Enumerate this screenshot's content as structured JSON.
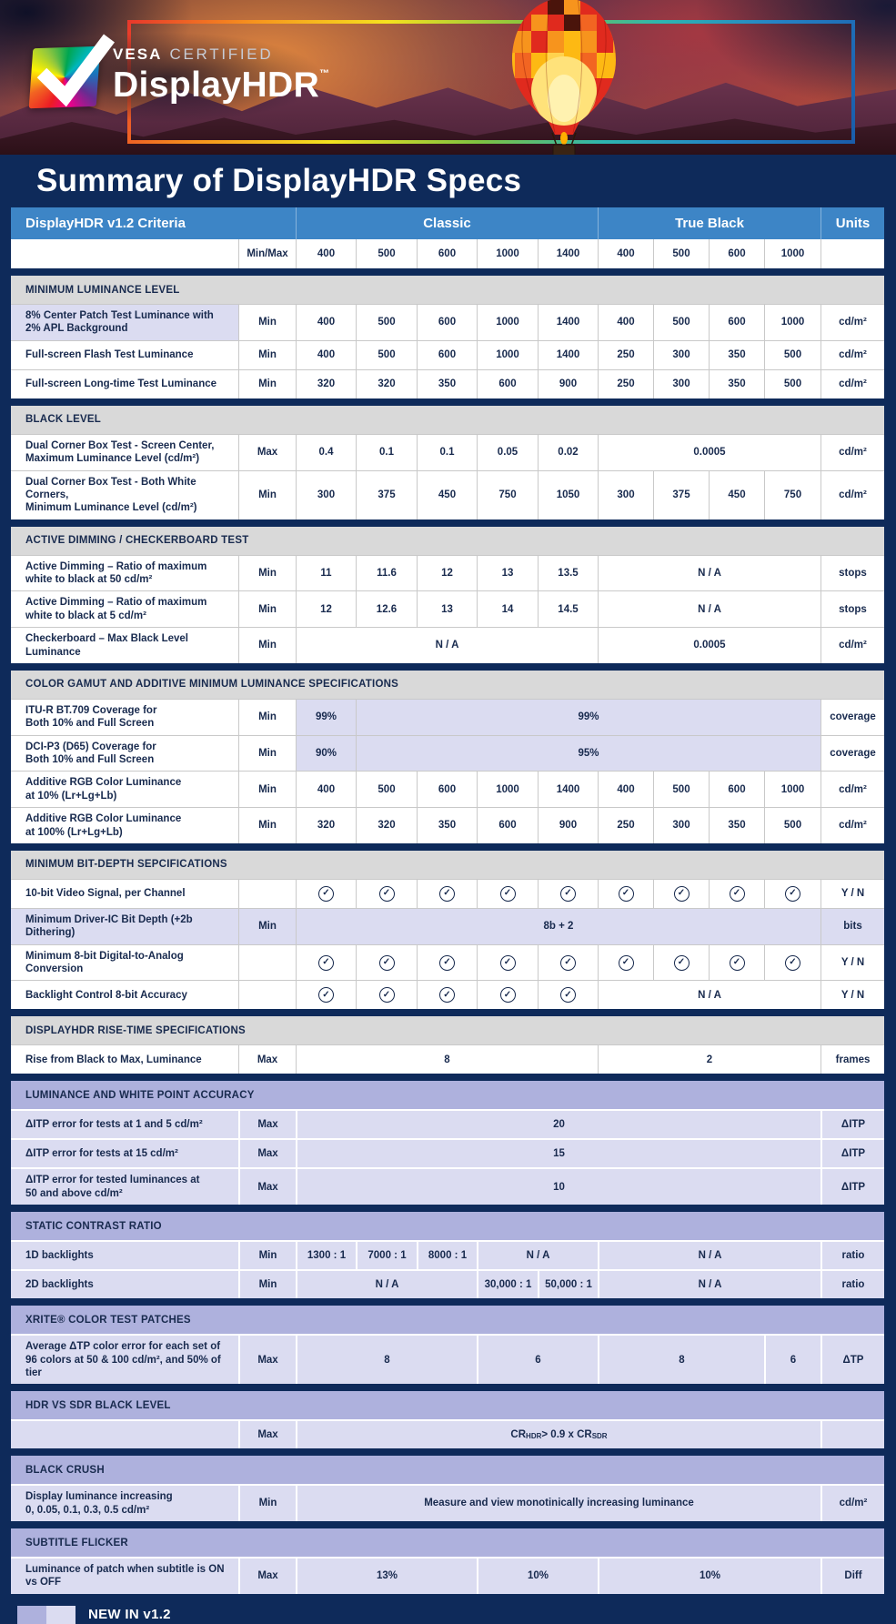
{
  "colors": {
    "page_background": "#0e2a5a",
    "table_header_blue": "#3d85c6",
    "section_gray": "#d9d9d9",
    "highlight_lavender": "#dbdcf1",
    "section_lavender": "#aeb1dd",
    "text_navy": "#182a4e"
  },
  "banner": {
    "logo": {
      "vesa": "VESA",
      "certified": "CERTIFIED",
      "product": "DisplayHDR",
      "trademark": "TM"
    }
  },
  "title": "Summary of DisplayHDR Specs",
  "table": {
    "header": {
      "criteria": "DisplayHDR v1.2 Criteria",
      "classic": "Classic",
      "true_black": "True Black",
      "units": "Units"
    },
    "tier_row": {
      "minmax_label": "Min/Max",
      "tiers": [
        "400",
        "500",
        "600",
        "1000",
        "1400",
        "400",
        "500",
        "600",
        "1000"
      ]
    },
    "sections": [
      {
        "id": "minimum-luminance-level",
        "title": "MINIMUM LUMINANCE LEVEL",
        "theme": "light",
        "rows": [
          {
            "label": "8% Center Patch Test Luminance with\n2% APL Background",
            "minmax": "Min",
            "hl": "label",
            "cells": [
              {
                "t": "400"
              },
              {
                "t": "500"
              },
              {
                "t": "600"
              },
              {
                "t": "1000"
              },
              {
                "t": "1400"
              },
              {
                "t": "400"
              },
              {
                "t": "500"
              },
              {
                "t": "600"
              },
              {
                "t": "1000"
              }
            ],
            "units": "cd/m²"
          },
          {
            "label": "Full-screen Flash Test Luminance",
            "minmax": "Min",
            "cells": [
              {
                "t": "400"
              },
              {
                "t": "500"
              },
              {
                "t": "600"
              },
              {
                "t": "1000"
              },
              {
                "t": "1400"
              },
              {
                "t": "250"
              },
              {
                "t": "300"
              },
              {
                "t": "350"
              },
              {
                "t": "500"
              }
            ],
            "units": "cd/m²"
          },
          {
            "label": "Full-screen Long-time Test Luminance",
            "minmax": "Min",
            "cells": [
              {
                "t": "320"
              },
              {
                "t": "320"
              },
              {
                "t": "350"
              },
              {
                "t": "600"
              },
              {
                "t": "900"
              },
              {
                "t": "250"
              },
              {
                "t": "300"
              },
              {
                "t": "350"
              },
              {
                "t": "500"
              }
            ],
            "units": "cd/m²"
          }
        ]
      },
      {
        "id": "black-level",
        "title": "BLACK LEVEL",
        "theme": "light",
        "rows": [
          {
            "label": "Dual Corner Box Test - Screen Center,\nMaximum Luminance Level (cd/m²)",
            "minmax": "Max",
            "cells": [
              {
                "t": "0.4"
              },
              {
                "t": "0.1"
              },
              {
                "t": "0.1"
              },
              {
                "t": "0.05"
              },
              {
                "t": "0.02"
              },
              {
                "t": "0.0005",
                "s": 4
              }
            ],
            "units": "cd/m²"
          },
          {
            "label": "Dual Corner Box Test - Both White Corners,\nMinimum Luminance Level (cd/m²)",
            "minmax": "Min",
            "cells": [
              {
                "t": "300"
              },
              {
                "t": "375"
              },
              {
                "t": "450"
              },
              {
                "t": "750"
              },
              {
                "t": "1050"
              },
              {
                "t": "300"
              },
              {
                "t": "375"
              },
              {
                "t": "450"
              },
              {
                "t": "750"
              }
            ],
            "units": "cd/m²"
          }
        ]
      },
      {
        "id": "active-dimming-checkerboard-test",
        "title": "ACTIVE DIMMING / CHECKERBOARD TEST",
        "theme": "light",
        "rows": [
          {
            "label": "Active Dimming – Ratio of maximum\nwhite to black at 50 cd/m²",
            "minmax": "Min",
            "cells": [
              {
                "t": "11"
              },
              {
                "t": "11.6"
              },
              {
                "t": "12"
              },
              {
                "t": "13"
              },
              {
                "t": "13.5"
              },
              {
                "t": "N / A",
                "s": 4
              }
            ],
            "units": "stops"
          },
          {
            "label": "Active Dimming – Ratio of maximum\nwhite to black at 5 cd/m²",
            "minmax": "Min",
            "cells": [
              {
                "t": "12"
              },
              {
                "t": "12.6"
              },
              {
                "t": "13"
              },
              {
                "t": "14"
              },
              {
                "t": "14.5"
              },
              {
                "t": "N / A",
                "s": 4
              }
            ],
            "units": "stops"
          },
          {
            "label": "Checkerboard – Max Black Level Luminance",
            "minmax": "Min",
            "cells": [
              {
                "t": "N / A",
                "s": 5
              },
              {
                "t": "0.0005",
                "s": 4
              }
            ],
            "units": "cd/m²"
          }
        ]
      },
      {
        "id": "color-gamut",
        "title": "COLOR GAMUT AND ADDITIVE MINIMUM LUMINANCE SPECIFICATIONS",
        "theme": "light",
        "rows": [
          {
            "label": "ITU-R BT.709 Coverage for\nBoth 10% and Full Screen",
            "minmax": "Min",
            "cells": [
              {
                "t": "99%",
                "hl": true
              },
              {
                "t": "99%",
                "s": 8,
                "hl": true
              }
            ],
            "units": "coverage"
          },
          {
            "label": "DCI-P3 (D65) Coverage for\nBoth 10% and Full Screen",
            "minmax": "Min",
            "cells": [
              {
                "t": "90%",
                "hl": true
              },
              {
                "t": "95%",
                "s": 8,
                "hl": true
              }
            ],
            "units": "coverage"
          },
          {
            "label": "Additive RGB Color Luminance\nat 10% (Lr+Lg+Lb)",
            "minmax": "Min",
            "cells": [
              {
                "t": "400"
              },
              {
                "t": "500"
              },
              {
                "t": "600"
              },
              {
                "t": "1000"
              },
              {
                "t": "1400"
              },
              {
                "t": "400"
              },
              {
                "t": "500"
              },
              {
                "t": "600"
              },
              {
                "t": "1000"
              }
            ],
            "units": "cd/m²"
          },
          {
            "label": "Additive RGB Color Luminance\nat 100% (Lr+Lg+Lb)",
            "minmax": "Min",
            "cells": [
              {
                "t": "320"
              },
              {
                "t": "320"
              },
              {
                "t": "350"
              },
              {
                "t": "600"
              },
              {
                "t": "900"
              },
              {
                "t": "250"
              },
              {
                "t": "300"
              },
              {
                "t": "350"
              },
              {
                "t": "500"
              }
            ],
            "units": "cd/m²"
          }
        ]
      },
      {
        "id": "minimum-bit-depth",
        "title": "MINIMUM BIT-DEPTH SEPCIFICATIONS",
        "theme": "light",
        "rows": [
          {
            "label": "10-bit Video Signal, per Channel",
            "minmax": "",
            "cells": [
              {
                "check": true
              },
              {
                "check": true
              },
              {
                "check": true
              },
              {
                "check": true
              },
              {
                "check": true
              },
              {
                "check": true
              },
              {
                "check": true
              },
              {
                "check": true
              },
              {
                "check": true
              }
            ],
            "units": "Y / N"
          },
          {
            "label": "Minimum Driver-IC Bit Depth (+2b Dithering)",
            "minmax": "Min",
            "hl": "row",
            "cells": [
              {
                "t": "8b + 2",
                "s": 9
              }
            ],
            "units": "bits"
          },
          {
            "label": "Minimum 8-bit Digital-to-Analog Conversion",
            "minmax": "",
            "cells": [
              {
                "check": true
              },
              {
                "check": true
              },
              {
                "check": true
              },
              {
                "check": true
              },
              {
                "check": true
              },
              {
                "check": true
              },
              {
                "check": true
              },
              {
                "check": true
              },
              {
                "check": true
              }
            ],
            "units": "Y / N"
          },
          {
            "label": "Backlight Control 8-bit Accuracy",
            "minmax": "",
            "cells": [
              {
                "check": true
              },
              {
                "check": true
              },
              {
                "check": true
              },
              {
                "check": true
              },
              {
                "check": true
              },
              {
                "t": "N / A",
                "s": 4
              }
            ],
            "units": "Y / N"
          }
        ]
      },
      {
        "id": "rise-time",
        "title": "DISPLAYHDR RISE-TIME SPECIFICATIONS",
        "theme": "light",
        "rows": [
          {
            "label": "Rise from Black to Max, Luminance",
            "minmax": "Max",
            "cells": [
              {
                "t": "8",
                "s": 5
              },
              {
                "t": "2",
                "s": 4
              }
            ],
            "units": "frames"
          }
        ]
      },
      {
        "id": "luminance-white-point-accuracy",
        "title": "LUMINANCE AND WHITE POINT ACCURACY",
        "theme": "purple",
        "rows": [
          {
            "label": "ΔITP error for tests at 1 and 5 cd/m²",
            "minmax": "Max",
            "cells": [
              {
                "t": "20",
                "s": 9
              }
            ],
            "units": "ΔITP"
          },
          {
            "label": "ΔITP error for tests at 15 cd/m²",
            "minmax": "Max",
            "cells": [
              {
                "t": "15",
                "s": 9
              }
            ],
            "units": "ΔITP"
          },
          {
            "label": "ΔITP error for tested luminances at\n50 and above cd/m²",
            "minmax": "Max",
            "cells": [
              {
                "t": "10",
                "s": 9
              }
            ],
            "units": "ΔITP"
          }
        ]
      },
      {
        "id": "static-contrast-ratio",
        "title": "STATIC CONTRAST RATIO",
        "theme": "purple",
        "rows": [
          {
            "label": "1D backlights",
            "minmax": "Min",
            "cells": [
              {
                "t": "1300 : 1"
              },
              {
                "t": "7000 : 1"
              },
              {
                "t": "8000 : 1"
              },
              {
                "t": "N / A",
                "s": 2
              },
              {
                "t": "N / A",
                "s": 4
              }
            ],
            "units": "ratio"
          },
          {
            "label": "2D backlights",
            "minmax": "Min",
            "cells": [
              {
                "t": "N / A",
                "s": 3
              },
              {
                "t": "30,000 : 1"
              },
              {
                "t": "50,000 : 1"
              },
              {
                "t": "N / A",
                "s": 4
              }
            ],
            "units": "ratio"
          }
        ]
      },
      {
        "id": "xrite-color-test-patches",
        "title": "XRITE® COLOR TEST PATCHES",
        "theme": "purple",
        "rows": [
          {
            "label": "Average ΔTP color error for each set of\n96 colors at 50 & 100 cd/m², and 50% of tier",
            "minmax": "Max",
            "cells": [
              {
                "t": "8",
                "s": 3
              },
              {
                "t": "6",
                "s": 2
              },
              {
                "t": "8",
                "s": 3
              },
              {
                "t": "6"
              }
            ],
            "units": "ΔTP"
          }
        ]
      },
      {
        "id": "hdr-vs-sdr-black-level",
        "title": "HDR VS SDR BLACK LEVEL",
        "theme": "purple",
        "rows": [
          {
            "label": "",
            "minmax": "Max",
            "cells": [
              {
                "f": [
                  "CR",
                  "HDR",
                  " > 0.9 x CR",
                  "SDR"
                ],
                "s": 9
              }
            ],
            "units": ""
          }
        ]
      },
      {
        "id": "black-crush",
        "title": "BLACK CRUSH",
        "theme": "purple",
        "rows": [
          {
            "label": "Display luminance increasing\n0, 0.05, 0.1, 0.3, 0.5 cd/m²",
            "minmax": "Min",
            "cells": [
              {
                "t": "Measure and view monotinically increasing luminance",
                "s": 9
              }
            ],
            "units": "cd/m²"
          }
        ]
      },
      {
        "id": "subtitle-flicker",
        "title": "SUBTITLE FLICKER",
        "theme": "purple",
        "rows": [
          {
            "label": "Luminance of patch when subtitle is ON vs OFF",
            "minmax": "Max",
            "cells": [
              {
                "t": "13%",
                "s": 3
              },
              {
                "t": "10%",
                "s": 2
              },
              {
                "t": "10%",
                "s": 4
              }
            ],
            "units": "Diff"
          }
        ]
      }
    ]
  },
  "legend": {
    "label": "NEW IN v1.2"
  }
}
